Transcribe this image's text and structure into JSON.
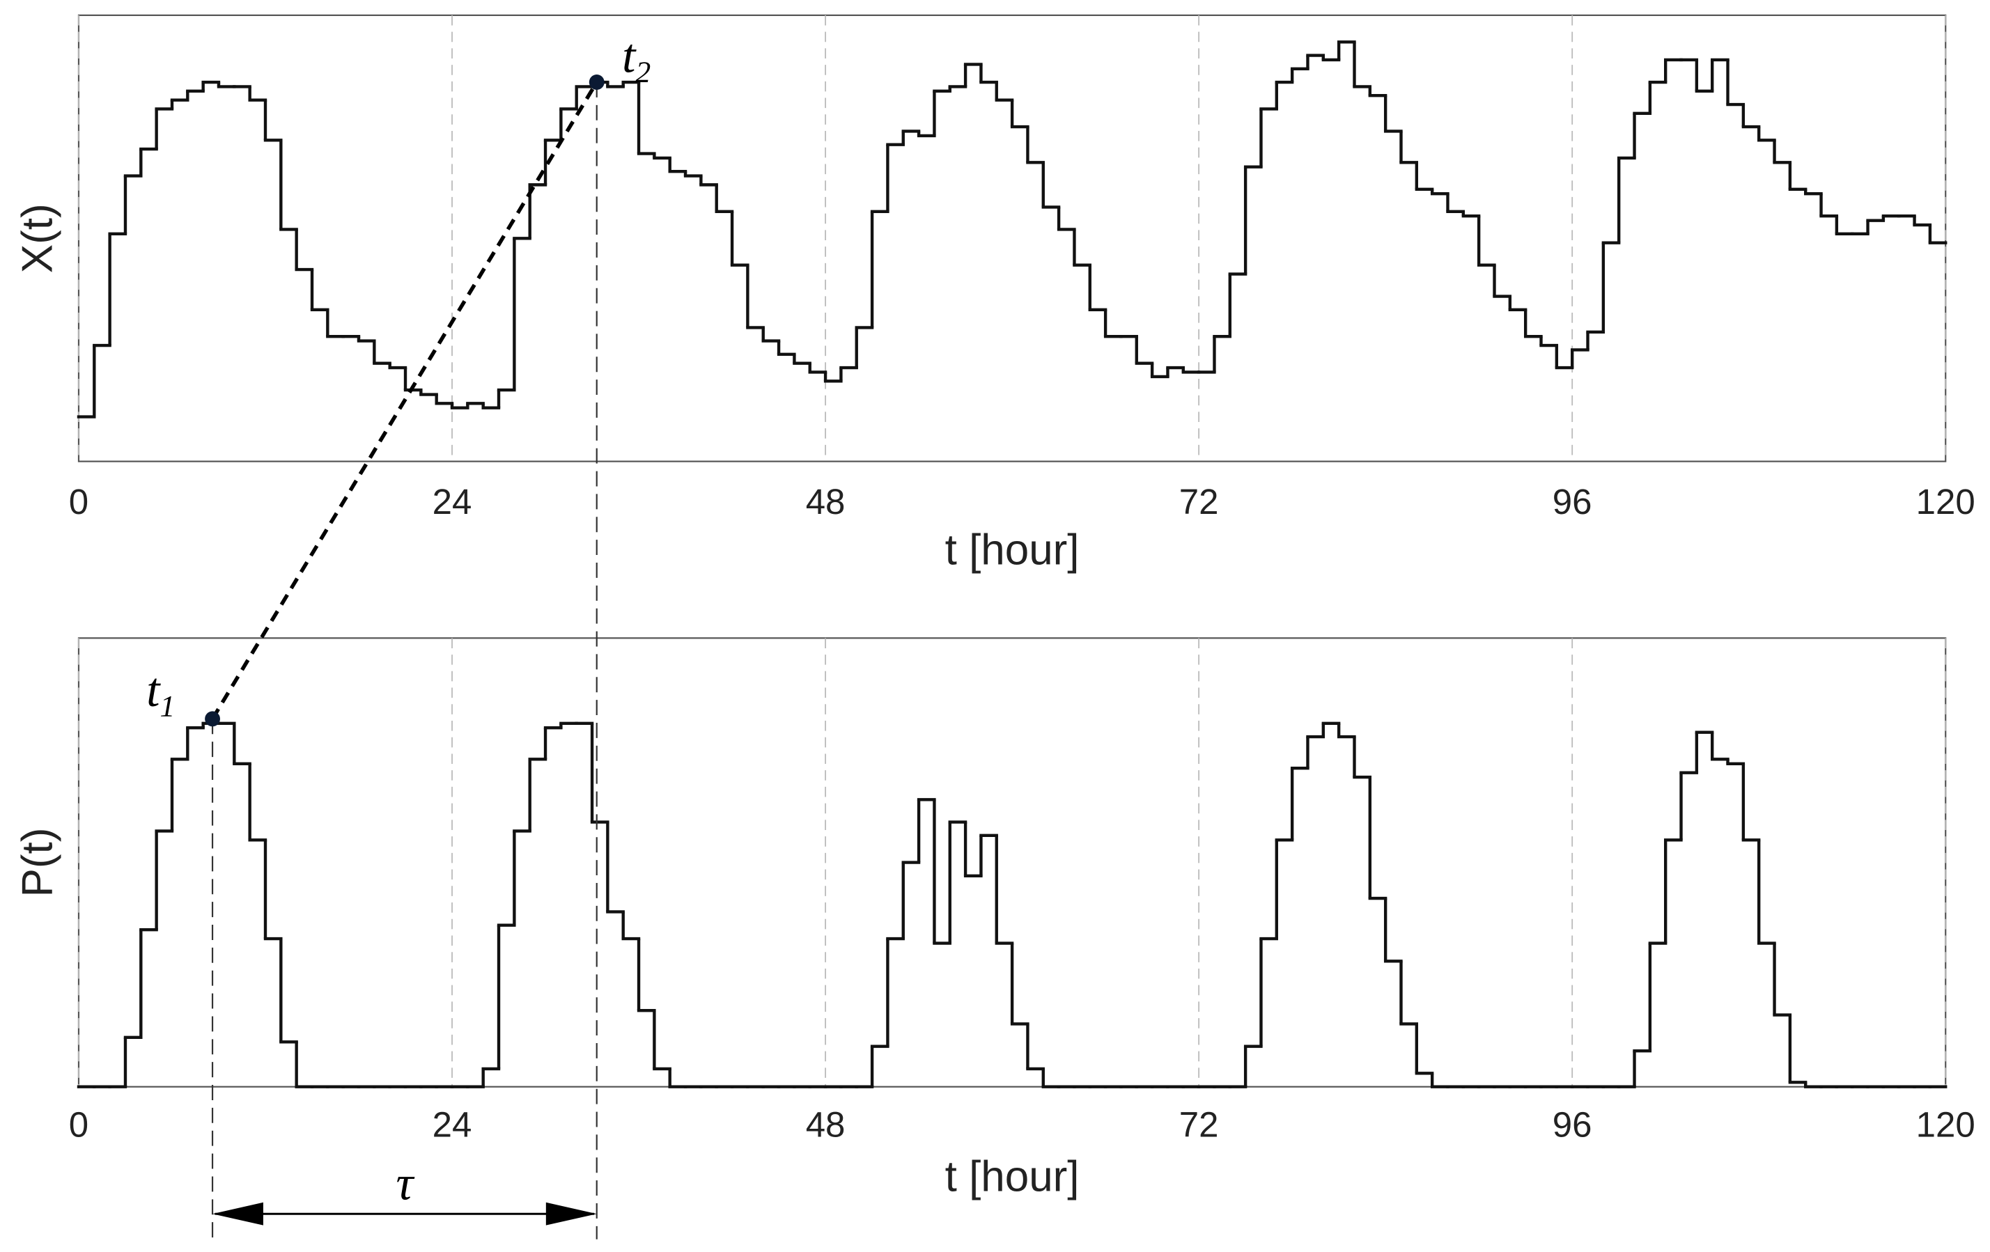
{
  "chart_data": [
    {
      "type": "stairs",
      "xlabel": "t [hour]",
      "ylabel": "X(t)",
      "color": "#111111",
      "grid": true,
      "xlim": [
        0,
        120
      ],
      "xticks": [
        0,
        24,
        48,
        72,
        96,
        120
      ],
      "ylim": [
        0,
        1
      ],
      "x": [
        0,
        1,
        2,
        3,
        4,
        5,
        6,
        7,
        8,
        9,
        10,
        11,
        12,
        13,
        14,
        15,
        16,
        17,
        18,
        19,
        20,
        21,
        22,
        23,
        24,
        25,
        26,
        27,
        28,
        29,
        30,
        31,
        32,
        33,
        34,
        35,
        36,
        37,
        38,
        39,
        40,
        41,
        42,
        43,
        44,
        45,
        46,
        47,
        48,
        49,
        50,
        51,
        52,
        53,
        54,
        55,
        56,
        57,
        58,
        59,
        60,
        61,
        62,
        63,
        64,
        65,
        66,
        67,
        68,
        69,
        70,
        71,
        72,
        73,
        74,
        75,
        76,
        77,
        78,
        79,
        80,
        81,
        82,
        83,
        84,
        85,
        86,
        87,
        88,
        89,
        90,
        91,
        92,
        93,
        94,
        95,
        96,
        97,
        98,
        99,
        100,
        101,
        102,
        103,
        104,
        105,
        106,
        107,
        108,
        109,
        110,
        111,
        112,
        113,
        114,
        115,
        116,
        117,
        118,
        119
      ],
      "values": [
        0.1,
        0.26,
        0.51,
        0.64,
        0.7,
        0.79,
        0.81,
        0.83,
        0.85,
        0.84,
        0.84,
        0.81,
        0.72,
        0.52,
        0.43,
        0.34,
        0.28,
        0.28,
        0.27,
        0.22,
        0.21,
        0.16,
        0.15,
        0.13,
        0.12,
        0.13,
        0.12,
        0.16,
        0.5,
        0.62,
        0.72,
        0.79,
        0.84,
        0.85,
        0.84,
        0.85,
        0.69,
        0.68,
        0.65,
        0.64,
        0.62,
        0.56,
        0.44,
        0.3,
        0.27,
        0.24,
        0.22,
        0.2,
        0.18,
        0.21,
        0.3,
        0.56,
        0.71,
        0.74,
        0.73,
        0.83,
        0.84,
        0.89,
        0.85,
        0.81,
        0.75,
        0.67,
        0.57,
        0.52,
        0.44,
        0.34,
        0.28,
        0.28,
        0.22,
        0.19,
        0.21,
        0.2,
        0.2,
        0.28,
        0.42,
        0.66,
        0.79,
        0.85,
        0.88,
        0.91,
        0.9,
        0.94,
        0.84,
        0.82,
        0.74,
        0.67,
        0.61,
        0.6,
        0.56,
        0.55,
        0.44,
        0.37,
        0.34,
        0.28,
        0.26,
        0.21,
        0.25,
        0.29,
        0.49,
        0.68,
        0.78,
        0.85,
        0.9,
        0.9,
        0.83,
        0.9,
        0.8,
        0.75,
        0.72,
        0.67,
        0.61,
        0.6,
        0.55,
        0.51,
        0.51,
        0.54,
        0.55,
        0.55,
        0.53,
        0.49
      ],
      "annotation": {
        "label": "t",
        "subscript": "2",
        "x": 33.3,
        "y": 0.85
      }
    },
    {
      "type": "stairs",
      "xlabel": "t [hour]",
      "ylabel": "P(t)",
      "color": "#111111",
      "grid": true,
      "xlim": [
        0,
        120
      ],
      "xticks": [
        0,
        24,
        48,
        72,
        96,
        120
      ],
      "ylim": [
        0,
        1
      ],
      "x": [
        0,
        1,
        2,
        3,
        4,
        5,
        6,
        7,
        8,
        9,
        10,
        11,
        12,
        13,
        14,
        15,
        16,
        17,
        18,
        19,
        20,
        21,
        22,
        23,
        24,
        25,
        26,
        27,
        28,
        29,
        30,
        31,
        32,
        33,
        34,
        35,
        36,
        37,
        38,
        39,
        40,
        41,
        42,
        43,
        44,
        45,
        46,
        47,
        48,
        49,
        50,
        51,
        52,
        53,
        54,
        55,
        56,
        57,
        58,
        59,
        60,
        61,
        62,
        63,
        64,
        65,
        66,
        67,
        68,
        69,
        70,
        71,
        72,
        73,
        74,
        75,
        76,
        77,
        78,
        79,
        80,
        81,
        82,
        83,
        84,
        85,
        86,
        87,
        88,
        89,
        90,
        91,
        92,
        93,
        94,
        95,
        96,
        97,
        98,
        99,
        100,
        101,
        102,
        103,
        104,
        105,
        106,
        107,
        108,
        109,
        110,
        111,
        112,
        113,
        114,
        115,
        116,
        117,
        118,
        119
      ],
      "values": [
        0,
        0,
        0,
        0.11,
        0.35,
        0.57,
        0.73,
        0.8,
        0.81,
        0.81,
        0.72,
        0.55,
        0.33,
        0.1,
        0,
        0,
        0,
        0,
        0,
        0,
        0,
        0,
        0,
        0,
        0,
        0,
        0.04,
        0.36,
        0.57,
        0.73,
        0.8,
        0.81,
        0.81,
        0.59,
        0.39,
        0.33,
        0.17,
        0.04,
        0,
        0,
        0,
        0,
        0,
        0,
        0,
        0,
        0,
        0,
        0,
        0,
        0,
        0.09,
        0.33,
        0.5,
        0.64,
        0.32,
        0.59,
        0.47,
        0.56,
        0.32,
        0.14,
        0.04,
        0,
        0,
        0,
        0,
        0,
        0,
        0,
        0,
        0,
        0,
        0,
        0,
        0,
        0.09,
        0.33,
        0.55,
        0.71,
        0.78,
        0.81,
        0.78,
        0.69,
        0.42,
        0.28,
        0.14,
        0.03,
        0,
        0,
        0,
        0,
        0,
        0,
        0,
        0,
        0,
        0,
        0,
        0,
        0,
        0.08,
        0.32,
        0.55,
        0.7,
        0.79,
        0.73,
        0.72,
        0.55,
        0.32,
        0.16,
        0.01,
        0,
        0,
        0,
        0,
        0,
        0,
        0,
        0,
        0
      ],
      "annotation": {
        "label": "t",
        "subscript": "1",
        "x": 8.6,
        "y": 0.82
      },
      "interval_label": "τ"
    }
  ]
}
